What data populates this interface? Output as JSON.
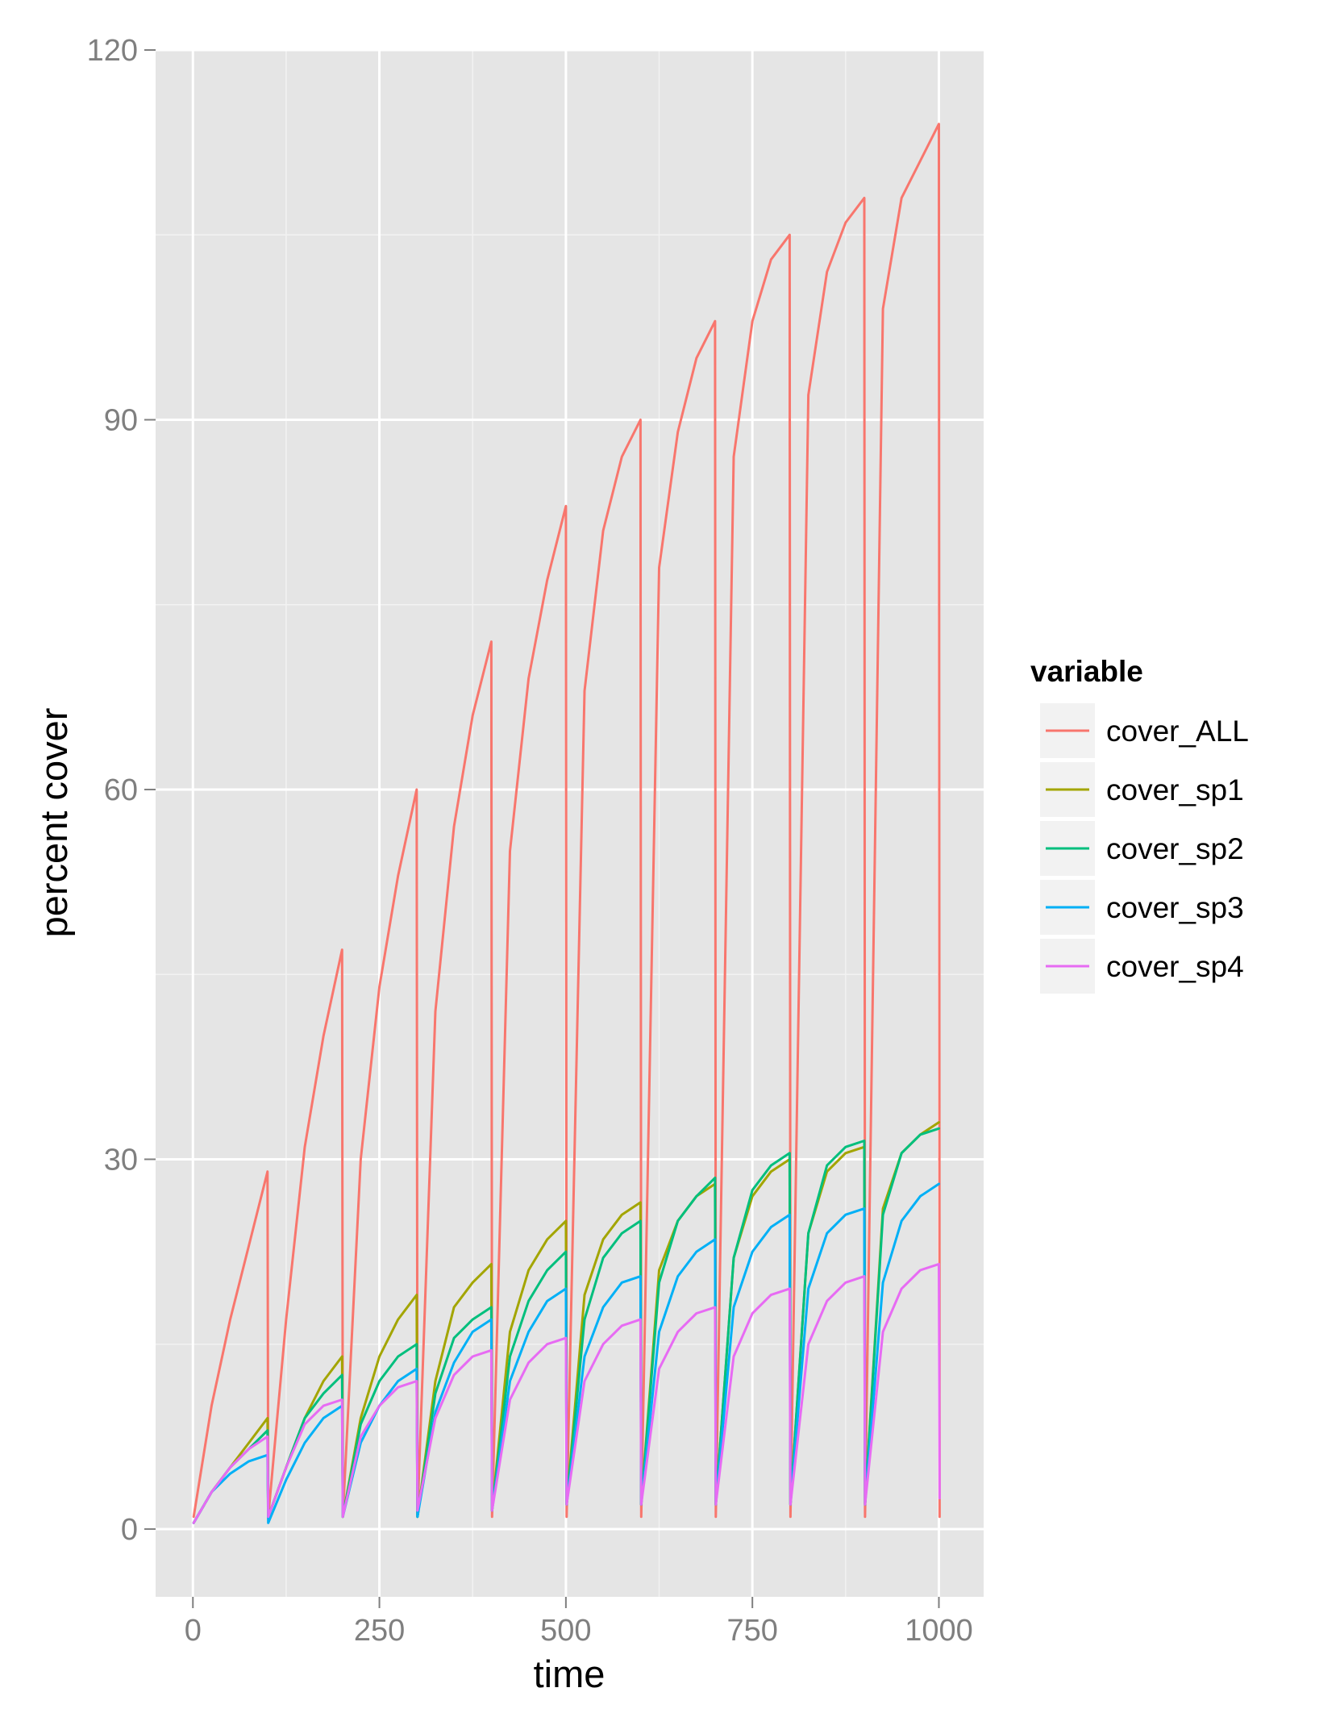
{
  "chart_data": {
    "type": "line",
    "title": "",
    "xlabel": "time",
    "ylabel": "percent cover",
    "xlim": [
      -50,
      1060
    ],
    "ylim": [
      -5.5,
      120
    ],
    "x_ticks": [
      0,
      250,
      500,
      750,
      1000
    ],
    "y_ticks": [
      0,
      30,
      60,
      90,
      120
    ],
    "x_tick_labels": [
      "0",
      "250",
      "500",
      "750",
      "1000"
    ],
    "y_tick_labels": [
      "0",
      "30",
      "60",
      "90",
      "120"
    ],
    "grid": true,
    "legend": {
      "title": "variable",
      "position": "right"
    },
    "series": [
      {
        "name": "cover_ALL",
        "color": "#F8766D",
        "x": [
          1,
          25,
          50,
          75,
          100,
          101,
          125,
          150,
          175,
          200,
          201,
          225,
          250,
          275,
          300,
          301,
          325,
          350,
          375,
          400,
          401,
          425,
          450,
          475,
          500,
          501,
          525,
          550,
          575,
          600,
          601,
          625,
          650,
          675,
          700,
          701,
          725,
          750,
          775,
          800,
          801,
          825,
          850,
          875,
          900,
          901,
          925,
          950,
          975,
          1000,
          1001
        ],
        "y": [
          1,
          10,
          17,
          23,
          29,
          1,
          17,
          31,
          40,
          47,
          1,
          30,
          44,
          53,
          60,
          1,
          42,
          57,
          66,
          72,
          1,
          55,
          69,
          77,
          83,
          1,
          68,
          81,
          87,
          90,
          1,
          78,
          89,
          95,
          98,
          1,
          87,
          98,
          103,
          105,
          1,
          92,
          102,
          106,
          108,
          1,
          99,
          108,
          111,
          114,
          1
        ]
      },
      {
        "name": "cover_sp1",
        "color": "#A3A500",
        "x": [
          1,
          25,
          50,
          75,
          100,
          101,
          125,
          150,
          175,
          200,
          201,
          225,
          250,
          275,
          300,
          301,
          325,
          350,
          375,
          400,
          401,
          425,
          450,
          475,
          500,
          501,
          525,
          550,
          575,
          600,
          601,
          625,
          650,
          675,
          700,
          701,
          725,
          750,
          775,
          800,
          801,
          825,
          850,
          875,
          900,
          901,
          925,
          950,
          975,
          1000
        ],
        "y": [
          0.5,
          3,
          5,
          7,
          9,
          1,
          5,
          9,
          12,
          14,
          1,
          9,
          14,
          17,
          19,
          1,
          12,
          18,
          20,
          21.5,
          1.5,
          16,
          21,
          23.5,
          25,
          2,
          19,
          23.5,
          25.5,
          26.5,
          2,
          21,
          25,
          27,
          28,
          2,
          22,
          27,
          29,
          30,
          2,
          24,
          29,
          30.5,
          31,
          2,
          26,
          30.5,
          32,
          33
        ]
      },
      {
        "name": "cover_sp2",
        "color": "#00BF7D",
        "x": [
          1,
          25,
          50,
          75,
          100,
          101,
          125,
          150,
          175,
          200,
          201,
          225,
          250,
          275,
          300,
          301,
          325,
          350,
          375,
          400,
          401,
          425,
          450,
          475,
          500,
          501,
          525,
          550,
          575,
          600,
          601,
          625,
          650,
          675,
          700,
          701,
          725,
          750,
          775,
          800,
          801,
          825,
          850,
          875,
          900,
          901,
          925,
          950,
          975,
          1000
        ],
        "y": [
          0.5,
          3,
          5,
          6.5,
          8,
          1,
          5,
          9,
          11,
          12.5,
          1,
          8.5,
          12,
          14,
          15,
          1,
          11,
          15.5,
          17,
          18,
          1.5,
          14,
          18.5,
          21,
          22.5,
          2,
          17,
          22,
          24,
          25,
          2,
          20,
          25,
          27,
          28.5,
          2,
          22,
          27.5,
          29.5,
          30.5,
          2,
          24,
          29.5,
          31,
          31.5,
          2,
          25.5,
          30.5,
          32,
          32.5
        ]
      },
      {
        "name": "cover_sp3",
        "color": "#00B0F6",
        "x": [
          1,
          25,
          50,
          75,
          100,
          101,
          125,
          150,
          175,
          200,
          201,
          225,
          250,
          275,
          300,
          301,
          325,
          350,
          375,
          400,
          401,
          425,
          450,
          475,
          500,
          501,
          525,
          550,
          575,
          600,
          601,
          625,
          650,
          675,
          700,
          701,
          725,
          750,
          775,
          800,
          801,
          825,
          850,
          875,
          900,
          901,
          925,
          950,
          975,
          1000
        ],
        "y": [
          0.5,
          3,
          4.5,
          5.5,
          6,
          0.5,
          4,
          7,
          9,
          10,
          1,
          7,
          10,
          12,
          13,
          1,
          9.5,
          13.5,
          16,
          17,
          1.5,
          12,
          16,
          18.5,
          19.5,
          2,
          14,
          18,
          20,
          20.5,
          2,
          16,
          20.5,
          22.5,
          23.5,
          2,
          18,
          22.5,
          24.5,
          25.5,
          2,
          19.5,
          24,
          25.5,
          26,
          2,
          20,
          25,
          27,
          28
        ]
      },
      {
        "name": "cover_sp4",
        "color": "#E76BF3",
        "x": [
          1,
          25,
          50,
          75,
          100,
          101,
          125,
          150,
          175,
          200,
          201,
          225,
          250,
          275,
          300,
          301,
          325,
          350,
          375,
          400,
          401,
          425,
          450,
          475,
          500,
          501,
          525,
          550,
          575,
          600,
          601,
          625,
          650,
          675,
          700,
          701,
          725,
          750,
          775,
          800,
          801,
          825,
          850,
          875,
          900,
          901,
          925,
          950,
          975,
          1000,
          1001
        ],
        "y": [
          0.5,
          3,
          5,
          6.5,
          7.5,
          1,
          5,
          8.5,
          10,
          10.5,
          1,
          7.5,
          10,
          11.5,
          12,
          1.5,
          9,
          12.5,
          14,
          14.5,
          1.5,
          10.5,
          13.5,
          15,
          15.5,
          2,
          12,
          15,
          16.5,
          17,
          2,
          13,
          16,
          17.5,
          18,
          2,
          14,
          17.5,
          19,
          19.5,
          2,
          15,
          18.5,
          20,
          20.5,
          2,
          16,
          19.5,
          21,
          21.5,
          2.5
        ]
      }
    ]
  }
}
